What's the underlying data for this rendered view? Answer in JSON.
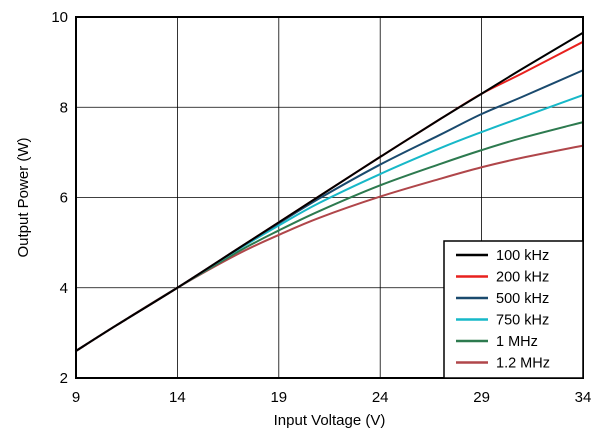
{
  "chart_data": {
    "type": "line",
    "xlabel": "Input Voltage (V)",
    "ylabel": "Output Power (W)",
    "xlim": [
      9,
      34
    ],
    "ylim": [
      2,
      10
    ],
    "xticks": [
      9,
      14,
      19,
      24,
      29,
      34
    ],
    "yticks": [
      2,
      4,
      6,
      8,
      10
    ],
    "grid": true,
    "legend_position": "bottom-right",
    "x": [
      9,
      11,
      14,
      17,
      19,
      21,
      24,
      27,
      29,
      31,
      34
    ],
    "series": [
      {
        "name": "100 kHz",
        "color": "#000000",
        "values": [
          2.6,
          3.17,
          4.0,
          4.87,
          5.45,
          6.03,
          6.9,
          7.75,
          8.3,
          8.85,
          9.65
        ]
      },
      {
        "name": "200 kHz",
        "color": "#e8211e",
        "values": [
          2.6,
          3.17,
          4.0,
          4.87,
          5.45,
          6.03,
          6.9,
          7.75,
          8.3,
          8.75,
          9.45
        ]
      },
      {
        "name": "500 kHz",
        "color": "#1a4a6e",
        "values": [
          2.6,
          3.17,
          4.0,
          4.87,
          5.43,
          5.98,
          6.73,
          7.4,
          7.85,
          8.23,
          8.82
        ]
      },
      {
        "name": "750 kHz",
        "color": "#17b8c8",
        "values": [
          2.6,
          3.17,
          4.0,
          4.85,
          5.38,
          5.88,
          6.52,
          7.1,
          7.45,
          7.78,
          8.27
        ]
      },
      {
        "name": "1 MHz",
        "color": "#2d7a4f",
        "values": [
          2.6,
          3.17,
          4.0,
          4.8,
          5.27,
          5.7,
          6.27,
          6.75,
          7.05,
          7.32,
          7.67
        ]
      },
      {
        "name": "1.2 MHz",
        "color": "#b0464a",
        "values": [
          2.6,
          3.17,
          4.0,
          4.75,
          5.17,
          5.55,
          6.02,
          6.42,
          6.67,
          6.88,
          7.15
        ]
      }
    ]
  }
}
